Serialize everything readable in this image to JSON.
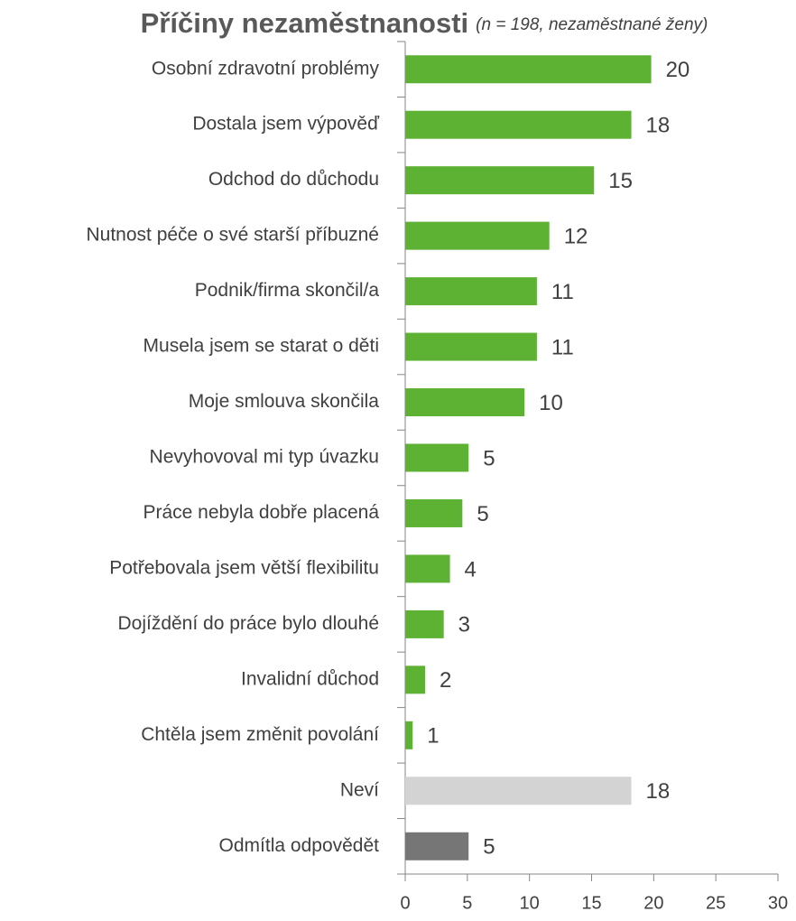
{
  "chart_data": {
    "type": "barh",
    "title": "Příčiny nezaměstnanosti",
    "subtitle": "(n = 198, nezaměstnané ženy)",
    "categories": [
      "Osobní zdravotní problémy",
      "Dostala jsem  výpověď",
      "Odchod do důchodu",
      "Nutnost péče o své starší příbuzné",
      "Podnik/firma skončil/a",
      "Musela jsem se starat o děti",
      "Moje smlouva skončila",
      "Nevyhovoval mi typ úvazku",
      "Práce nebyla dobře placená",
      "Potřebovala jsem větší flexibilitu",
      "Dojíždění do práce bylo dlouhé",
      "Invalidní důchod",
      "Chtěla jsem změnit povolání",
      "Neví",
      "Odmítla odpovědět"
    ],
    "values": [
      19.8,
      18.2,
      15.2,
      11.6,
      10.6,
      10.6,
      9.6,
      5.1,
      4.6,
      3.6,
      3.1,
      1.6,
      0.6,
      18.2,
      5.1
    ],
    "value_labels": [
      "20",
      "18",
      "15",
      "12",
      "11",
      "11",
      "10",
      "5",
      "5",
      "4",
      "3",
      "2",
      "1",
      "18",
      "5"
    ],
    "colors": [
      "#5db234",
      "#5db234",
      "#5db234",
      "#5db234",
      "#5db234",
      "#5db234",
      "#5db234",
      "#5db234",
      "#5db234",
      "#5db234",
      "#5db234",
      "#5db234",
      "#5db234",
      "#d3d3d3",
      "#767676"
    ],
    "xlim": [
      0,
      30
    ],
    "xticks": [
      0,
      5,
      10,
      15,
      20,
      25,
      30
    ]
  }
}
